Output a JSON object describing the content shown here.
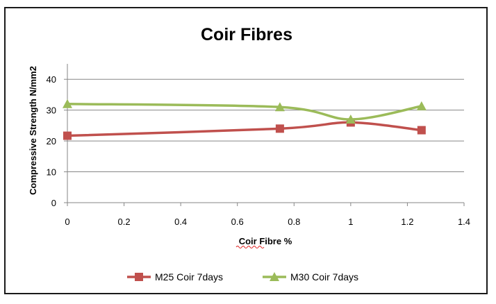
{
  "chart_data": {
    "type": "line",
    "title": "Coir Fibres",
    "xlabel": "Coir Fibre %",
    "ylabel": "Compressive Strength  N/mm2",
    "xlim": [
      0,
      1.4
    ],
    "ylim": [
      0,
      45
    ],
    "x_ticks": [
      "0",
      "0.2",
      "0.4",
      "0.6",
      "0.8",
      "1",
      "1.2",
      "1.4"
    ],
    "y_ticks": [
      "0",
      "10",
      "20",
      "30",
      "40"
    ],
    "grid": "horizontal",
    "legend_position": "bottom",
    "series": [
      {
        "name": "M25 Coir 7days",
        "color": "#c0504d",
        "marker": "square",
        "x": [
          0,
          0.75,
          1,
          1.25
        ],
        "y": [
          21.7,
          24,
          26,
          23.5
        ]
      },
      {
        "name": "M30 Coir 7days",
        "color": "#9bbb59",
        "marker": "triangle",
        "x": [
          0,
          0.75,
          1,
          1.25
        ],
        "y": [
          32,
          31,
          27,
          31.3
        ]
      }
    ]
  }
}
